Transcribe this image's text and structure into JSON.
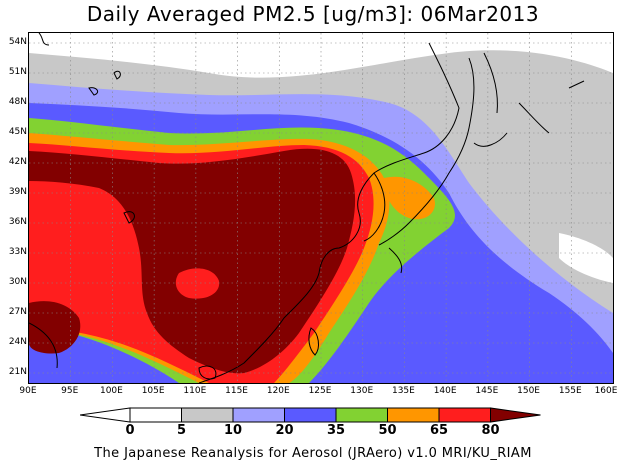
{
  "title": "Daily Averaged PM2.5 [ug/m3]: 06Mar2013",
  "footer": "The Japanese Reanalysis for Aerosol (JRAero) v1.0 MRI/KU_RIAM",
  "map": {
    "lon_range": [
      90,
      160
    ],
    "lat_range": [
      20,
      55
    ],
    "lon_ticks": [
      "90E",
      "95E",
      "100E",
      "105E",
      "110E",
      "115E",
      "120E",
      "125E",
      "130E",
      "135E",
      "140E",
      "145E",
      "150E",
      "155E",
      "160E"
    ],
    "lat_ticks": [
      "54N",
      "51N",
      "48N",
      "45N",
      "42N",
      "39N",
      "36N",
      "33N",
      "30N",
      "27N",
      "24N",
      "21N"
    ],
    "grid_lines": true,
    "coastline_color": "#000000",
    "levels": [
      {
        "label": "<0",
        "color": "#ffffff"
      },
      {
        "label": "0-5",
        "color": "#ffffff"
      },
      {
        "label": "5-10",
        "color": "#c8c8c8"
      },
      {
        "label": "10-20",
        "color": "#a0a0ff"
      },
      {
        "label": "20-35",
        "color": "#5a5aff"
      },
      {
        "label": "35-50",
        "color": "#82d232"
      },
      {
        "label": "50-65",
        "color": "#ff9600"
      },
      {
        "label": "65-80",
        "color": "#ff1e1e"
      },
      {
        "label": ">80",
        "color": "#820000"
      }
    ]
  },
  "colorbar": {
    "labels": [
      "0",
      "5",
      "10",
      "20",
      "35",
      "50",
      "65",
      "80"
    ],
    "colors": [
      "#ffffff",
      "#ffffff",
      "#c8c8c8",
      "#a0a0ff",
      "#5a5aff",
      "#82d232",
      "#ff9600",
      "#ff1e1e",
      "#820000"
    ]
  }
}
